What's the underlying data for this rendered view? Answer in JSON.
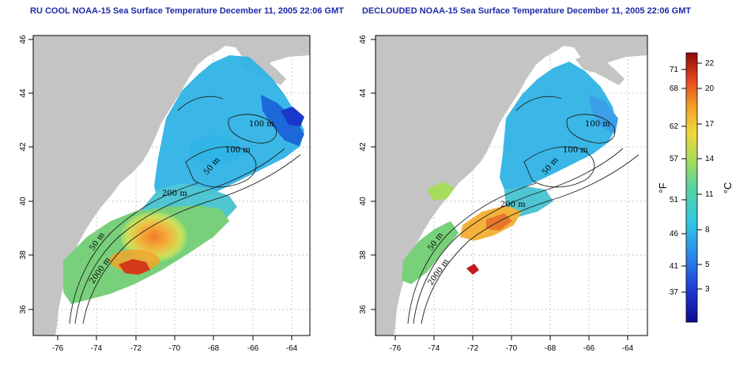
{
  "panels": [
    {
      "title": "RU COOL NOAA-15 Sea Surface Temperature December 11, 2005 22:06 GMT",
      "kind": "cloudy",
      "contour_labels": [
        "100 m",
        "100 m",
        "50 m",
        "200 m",
        "50 m",
        "2000 m"
      ]
    },
    {
      "title": "DECLOUDED NOAA-15 Sea Surface Temperature December 11, 2005 22:06 GMT",
      "kind": "declouded",
      "contour_labels": [
        "100 m",
        "100 m",
        "50 m",
        "200 m",
        "50 m",
        "2000 m"
      ]
    }
  ],
  "axes": {
    "lon_ticks": [
      "-76",
      "-74",
      "-72",
      "-70",
      "-68",
      "-66",
      "-64"
    ],
    "lat_ticks": [
      "46",
      "44",
      "42",
      "40",
      "38",
      "36"
    ]
  },
  "colorbar": {
    "fahrenheit_ticks": [
      "71",
      "68",
      "62",
      "57",
      "51",
      "46",
      "41",
      "37"
    ],
    "celsius_ticks": [
      "22",
      "20",
      "17",
      "14",
      "11",
      "8",
      "5",
      "3"
    ],
    "left_unit": "°F",
    "right_unit": "°C"
  },
  "colors": {
    "land": "#c4c4c4",
    "water": "#ffffff",
    "title": "#1f2aa8",
    "cold": "#1a37c9",
    "cool": "#2fb3e6",
    "mid": "#6fd08a",
    "warm": "#f3c23a",
    "hot": "#e2461f",
    "hottest": "#c21b1b"
  }
}
